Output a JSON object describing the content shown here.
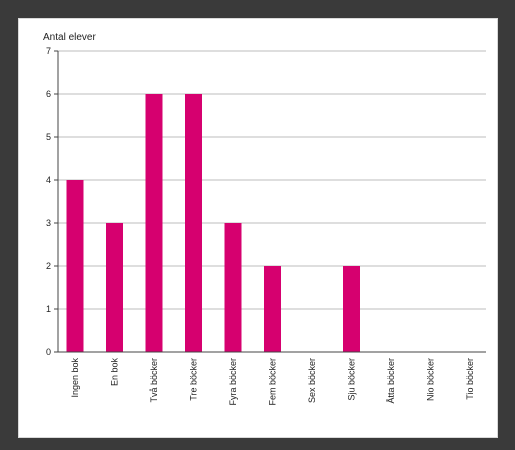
{
  "chart_data": {
    "type": "bar",
    "ylabel": "Antal elever",
    "xlabel": "",
    "ylim": [
      0,
      7
    ],
    "yticks": [
      0,
      1,
      2,
      3,
      4,
      5,
      6,
      7
    ],
    "grid": true,
    "categories": [
      "Ingen bok",
      "En bok",
      "Två böcker",
      "Tre böcker",
      "Fyra böcker",
      "Fem böcker",
      "Sex böcker",
      "Sju böcker",
      "Åtta böcker",
      "Nio böcker",
      "Tio böcker"
    ],
    "values": [
      4,
      3,
      6,
      6,
      3,
      2,
      0,
      2,
      0,
      0,
      0
    ],
    "bar_color": "#d6006f"
  }
}
